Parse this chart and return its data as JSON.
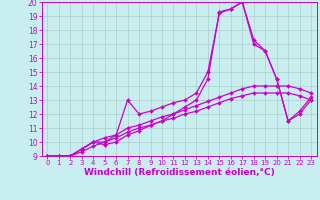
{
  "xlabel": "Windchill (Refroidissement éolien,°C)",
  "bg_color": "#c8eef0",
  "line_color": "#cc00cc",
  "grid_color": "#aacccc",
  "xlim": [
    -0.5,
    23.5
  ],
  "ylim": [
    9,
    20
  ],
  "xticks": [
    0,
    1,
    2,
    3,
    4,
    5,
    6,
    7,
    8,
    9,
    10,
    11,
    12,
    13,
    14,
    15,
    16,
    17,
    18,
    19,
    20,
    21,
    22,
    23
  ],
  "yticks": [
    9,
    10,
    11,
    12,
    13,
    14,
    15,
    16,
    17,
    18,
    19,
    20
  ],
  "lines": [
    [
      9.0,
      9.0,
      9.0,
      9.3,
      9.7,
      10.0,
      10.3,
      10.7,
      11.0,
      11.2,
      11.5,
      11.7,
      12.0,
      12.2,
      12.5,
      12.8,
      13.1,
      13.3,
      13.5,
      13.5,
      13.5,
      13.5,
      13.3,
      13.0
    ],
    [
      9.0,
      9.0,
      9.0,
      9.5,
      10.0,
      10.3,
      10.5,
      11.0,
      11.2,
      11.5,
      11.8,
      12.0,
      12.3,
      12.6,
      12.9,
      13.2,
      13.5,
      13.8,
      14.0,
      14.0,
      14.0,
      14.0,
      13.8,
      13.5
    ],
    [
      9.0,
      9.0,
      9.0,
      9.5,
      10.0,
      9.8,
      10.0,
      10.5,
      10.8,
      11.2,
      11.5,
      12.0,
      12.5,
      13.0,
      14.5,
      19.3,
      19.5,
      20.0,
      17.0,
      16.5,
      14.5,
      11.5,
      12.0,
      13.0
    ],
    [
      9.0,
      9.0,
      9.0,
      9.5,
      10.0,
      10.0,
      10.5,
      13.0,
      12.0,
      12.2,
      12.5,
      12.8,
      13.0,
      13.5,
      15.0,
      19.2,
      19.5,
      20.0,
      17.3,
      16.5,
      14.5,
      11.5,
      12.2,
      13.2
    ]
  ],
  "marker": "D",
  "marker_size": 2.0,
  "line_width": 0.9,
  "tick_fontsize": 5.5,
  "xlabel_fontsize": 6.5
}
